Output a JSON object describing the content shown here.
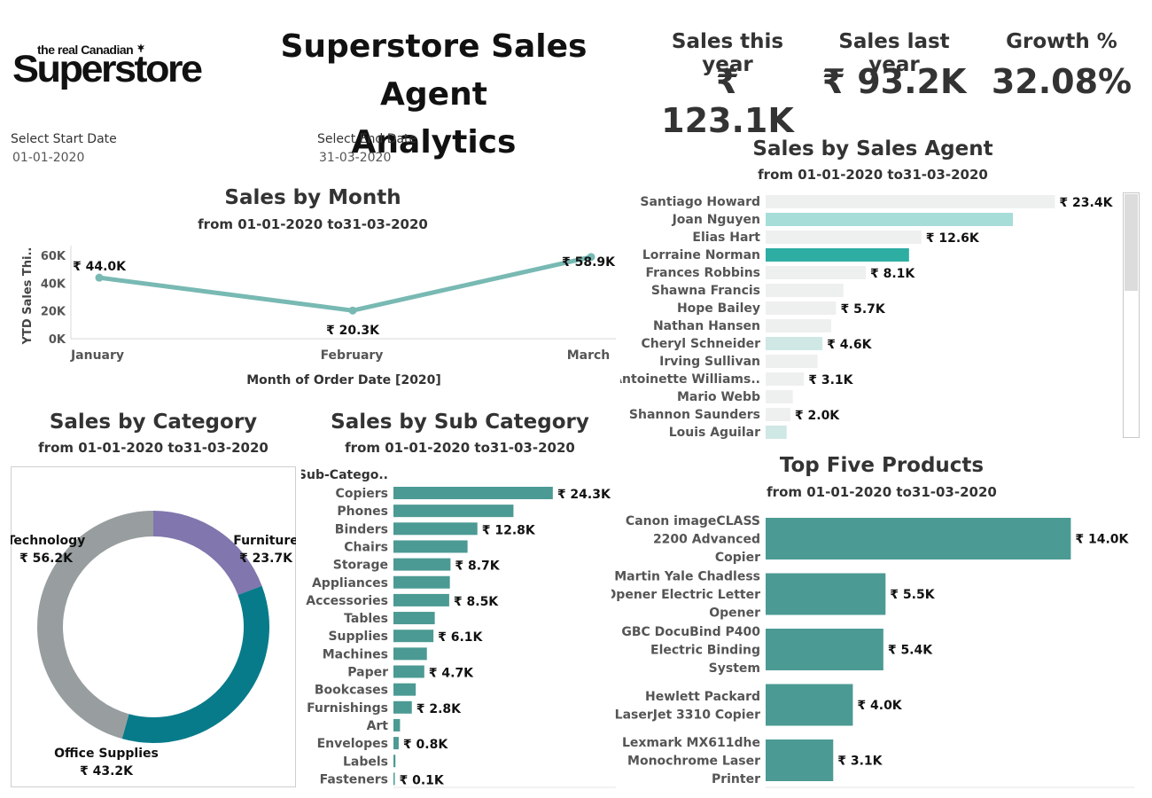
{
  "logo": {
    "small": "the real Canadian",
    "big": "Superstore",
    "leaf_icon": "maple-leaf-icon"
  },
  "title_line1": "Superstore Sales Agent",
  "title_line2": "Analytics",
  "kpis": [
    {
      "label": "Sales this year",
      "value": "₹ 123.1K"
    },
    {
      "label": "Sales last year",
      "value": "₹ 93.2K"
    },
    {
      "label": "Growth %",
      "value": "32.08%"
    }
  ],
  "filters": {
    "start_label": "Select Start Date",
    "start_value": "01-01-2020",
    "end_label": "Select End Date",
    "end_value": "31-03-2020"
  },
  "colors": {
    "teal": "#4b9a93",
    "line": "#78b9b3",
    "agent_gray": "#eef0f0",
    "agent_light": "#cfe8e6",
    "agent_mid": "#a7ddd8",
    "agent_sel": "#2eaea3",
    "cat_purple": "#8176ad",
    "cat_teal": "#087b8a",
    "cat_gray": "#989e9f"
  },
  "chart_data": [
    {
      "id": "month",
      "type": "line",
      "title": "Sales by Month",
      "subtitle": "from 01-01-2020 to31-03-2020",
      "categories": [
        "January",
        "February",
        "March"
      ],
      "values": [
        44.0,
        20.3,
        58.9
      ],
      "labels": [
        "₹ 44.0K",
        "₹ 20.3K",
        "₹ 58.9K"
      ],
      "ylabel": "YTD Sales Thi..",
      "xlabel": "Month of Order Date [2020]",
      "yticks": [
        "0K",
        "20K",
        "40K",
        "60K"
      ],
      "ylim": [
        0,
        62
      ]
    },
    {
      "id": "agent",
      "type": "bar",
      "title": "Sales by Sales Agent",
      "subtitle": "from 01-01-2020 to31-03-2020",
      "categories": [
        "Santiago Howard",
        "Joan Nguyen",
        "Elias Hart",
        "Lorraine Norman",
        "Frances Robbins",
        "Shawna Francis",
        "Hope Bailey",
        "Nathan Hansen",
        "Cheryl Schneider",
        "Irving Sullivan",
        "Antoinette Williams..",
        "Mario Webb",
        "Shannon Saunders",
        "Louis Aguilar"
      ],
      "values": [
        23.4,
        20.0,
        12.6,
        11.6,
        8.1,
        6.3,
        5.7,
        5.3,
        4.6,
        4.2,
        3.1,
        2.2,
        2.0,
        1.7
      ],
      "labels": [
        "₹ 23.4K",
        "",
        "₹ 12.6K",
        "",
        "₹ 8.1K",
        "",
        "₹ 5.7K",
        "",
        "₹ 4.6K",
        "",
        "₹ 3.1K",
        "",
        "₹ 2.0K",
        ""
      ],
      "color_keys": [
        "agent_gray",
        "agent_mid",
        "agent_gray",
        "agent_sel",
        "agent_gray",
        "agent_gray",
        "agent_gray",
        "agent_gray",
        "agent_light",
        "agent_gray",
        "agent_gray",
        "agent_gray",
        "agent_gray",
        "agent_light"
      ]
    },
    {
      "id": "category",
      "type": "pie",
      "title": "Sales by Category",
      "subtitle": "from 01-01-2020 to31-03-2020",
      "categories": [
        "Furniture",
        "Office Supplies",
        "Technology"
      ],
      "values": [
        23.7,
        43.2,
        56.2
      ],
      "labels": [
        "₹ 23.7K",
        "₹ 43.2K",
        "₹ 56.2K"
      ],
      "color_keys": [
        "cat_purple",
        "cat_teal",
        "cat_gray"
      ]
    },
    {
      "id": "subcategory",
      "type": "bar",
      "title": "Sales by Sub Category",
      "subtitle": "from 01-01-2020 to31-03-2020",
      "header": "Sub-Catego..",
      "categories": [
        "Copiers",
        "Phones",
        "Binders",
        "Chairs",
        "Storage",
        "Appliances",
        "Accessories",
        "Tables",
        "Supplies",
        "Machines",
        "Paper",
        "Bookcases",
        "Furnishings",
        "Art",
        "Envelopes",
        "Labels",
        "Fasteners"
      ],
      "values": [
        24.3,
        18.3,
        12.8,
        11.3,
        8.7,
        8.6,
        8.5,
        6.3,
        6.1,
        5.1,
        4.7,
        3.4,
        2.8,
        1.0,
        0.8,
        0.3,
        0.1
      ],
      "labels": [
        "₹ 24.3K",
        "",
        "₹ 12.8K",
        "",
        "₹ 8.7K",
        "",
        "₹ 8.5K",
        "",
        "₹ 6.1K",
        "",
        "₹ 4.7K",
        "",
        "₹ 2.8K",
        "",
        "₹ 0.8K",
        "",
        "₹ 0.1K"
      ]
    },
    {
      "id": "products",
      "type": "bar",
      "title": "Top Five Products",
      "subtitle": "from 01-01-2020 to31-03-2020",
      "categories": [
        [
          "Canon imageCLASS",
          "2200 Advanced",
          "Copier"
        ],
        [
          "Martin Yale Chadless",
          "Opener Electric Letter",
          "Opener"
        ],
        [
          "GBC DocuBind P400",
          "Electric Binding",
          "System"
        ],
        [
          "Hewlett Packard",
          "LaserJet 3310 Copier"
        ],
        [
          "Lexmark MX611dhe",
          "Monochrome Laser",
          "Printer"
        ]
      ],
      "values": [
        14.0,
        5.5,
        5.4,
        4.0,
        3.1
      ],
      "labels": [
        "₹ 14.0K",
        "₹ 5.5K",
        "₹ 5.4K",
        "₹ 4.0K",
        "₹ 3.1K"
      ]
    }
  ]
}
